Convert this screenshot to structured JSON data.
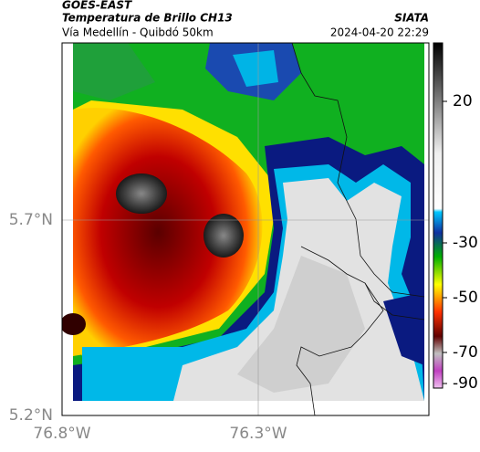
{
  "header": {
    "top_title": "GOES-EAST",
    "title": "Temperatura de Brillo CH13",
    "subtitle": "Vía Medellín - Quibdó 50km",
    "source": "SIATA",
    "datetime": "2024-04-20 22:29"
  },
  "map": {
    "lat_labels": [
      "5.7°N",
      "5.2°N"
    ],
    "lon_labels": [
      "76.8°W",
      "76.3°W"
    ]
  },
  "colorbar": {
    "ticks": [
      20,
      -30,
      -50,
      -70,
      -90
    ]
  }
}
